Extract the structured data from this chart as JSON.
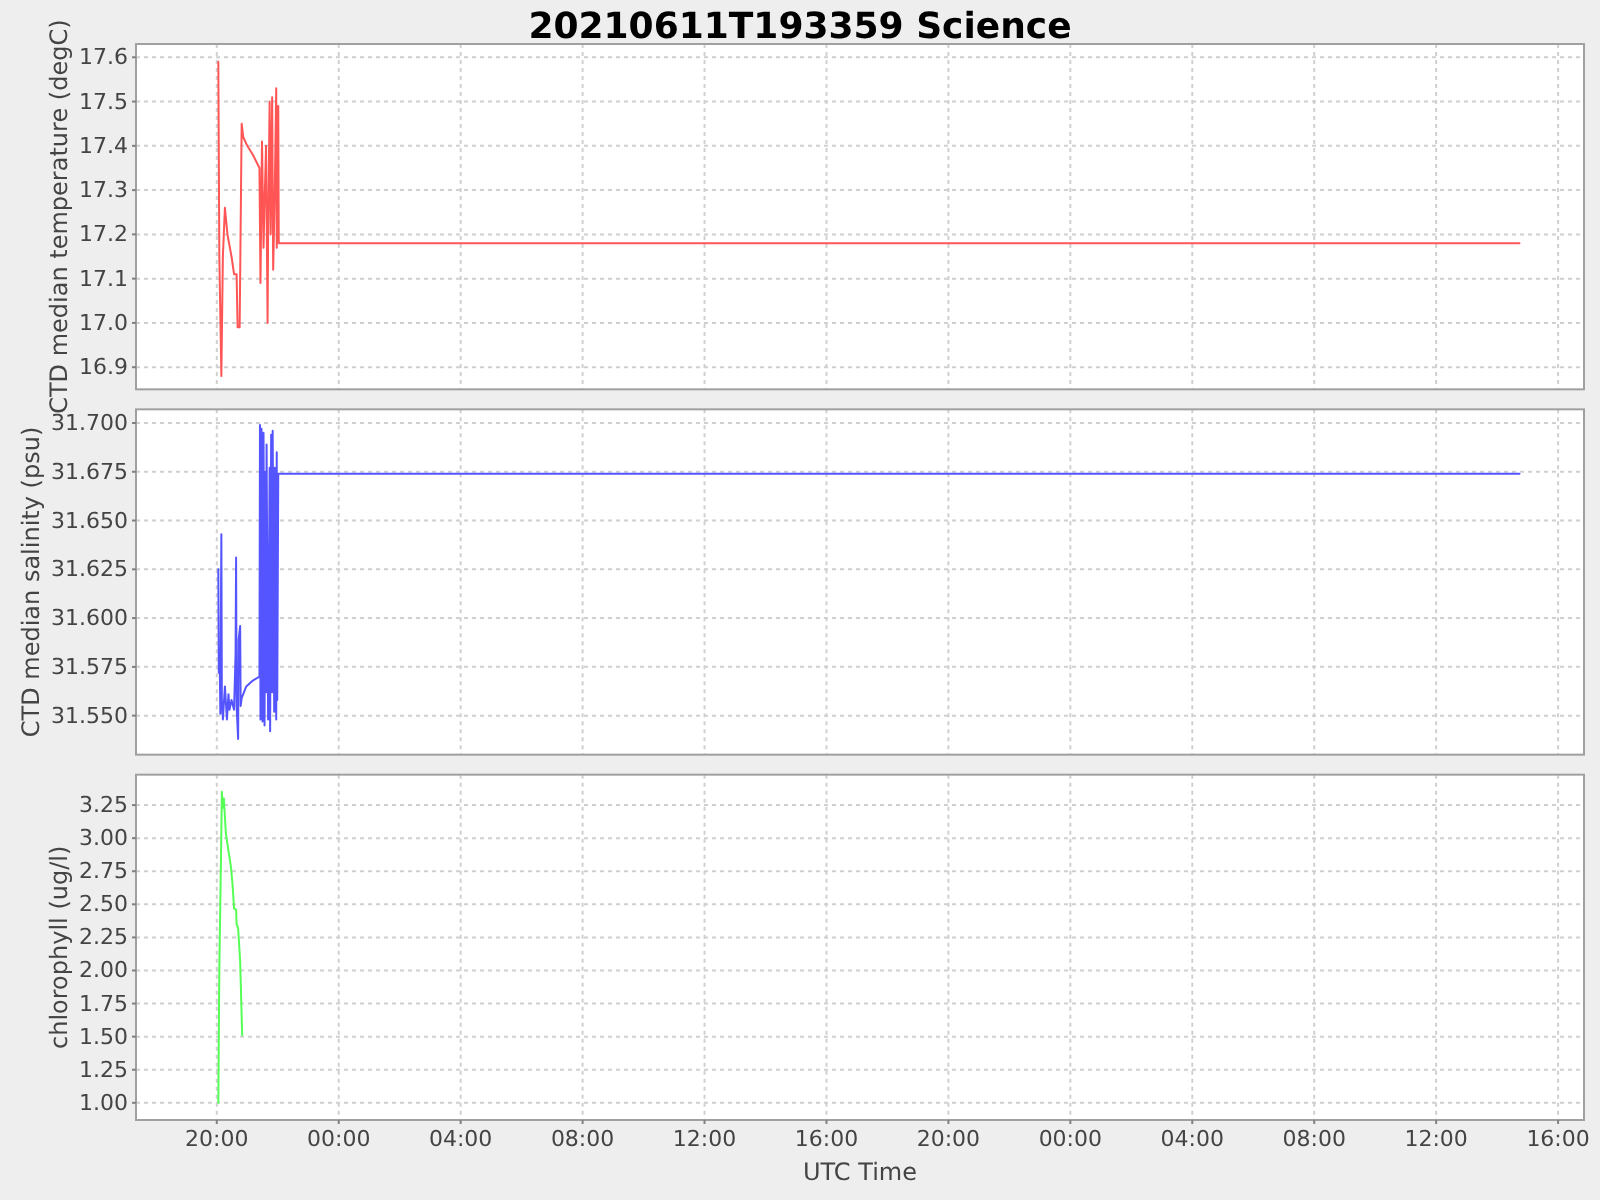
{
  "chart_data": [
    {
      "type": "line",
      "title": "20210611T193359 Science",
      "ylabel": "CTD median temperature (degC)",
      "x": [
        "2021-06-11T20:03",
        "2021-06-11T20:05",
        "2021-06-11T20:09",
        "2021-06-11T20:12",
        "2021-06-11T20:16",
        "2021-06-11T20:21",
        "2021-06-11T20:29",
        "2021-06-11T20:34",
        "2021-06-11T20:39",
        "2021-06-11T20:41",
        "2021-06-11T20:45",
        "2021-06-11T20:49",
        "2021-06-11T20:52",
        "2021-06-11T21:00",
        "2021-06-11T21:11",
        "2021-06-11T21:24",
        "2021-06-11T21:26",
        "2021-06-11T21:29",
        "2021-06-11T21:32",
        "2021-06-11T21:34",
        "2021-06-11T21:37",
        "2021-06-11T21:40",
        "2021-06-11T21:41",
        "2021-06-11T21:44",
        "2021-06-11T21:46",
        "2021-06-11T21:49",
        "2021-06-11T21:51",
        "2021-06-11T21:54",
        "2021-06-11T21:57",
        "2021-06-11T21:58",
        "2021-06-11T22:01",
        "2021-06-11T22:02",
        "2021-06-13T14:44"
      ],
      "series": [
        {
          "color": "#ff5555",
          "values": [
            17.59,
            17.15,
            16.88,
            17.15,
            17.26,
            17.2,
            17.15,
            17.11,
            17.11,
            16.99,
            16.99,
            17.45,
            17.42,
            17.4,
            17.38,
            17.35,
            17.09,
            17.41,
            17.17,
            17.27,
            17.4,
            17.0,
            17.2,
            17.5,
            17.2,
            17.51,
            17.12,
            17.29,
            17.53,
            17.17,
            17.49,
            17.18,
            17.18
          ]
        }
      ],
      "xlim": [
        "2021-06-11T17:21",
        "2021-06-13T16:51"
      ],
      "xticks": [
        {
          "value": "2021-06-11T20:00",
          "label": null
        },
        {
          "value": "2021-06-12T00:00",
          "label": null
        },
        {
          "value": "2021-06-12T04:00",
          "label": null
        },
        {
          "value": "2021-06-12T08:00",
          "label": null
        },
        {
          "value": "2021-06-12T12:00",
          "label": null
        },
        {
          "value": "2021-06-12T16:00",
          "label": null
        },
        {
          "value": "2021-06-12T20:00",
          "label": null
        },
        {
          "value": "2021-06-13T00:00",
          "label": null
        },
        {
          "value": "2021-06-13T04:00",
          "label": null
        },
        {
          "value": "2021-06-13T08:00",
          "label": null
        },
        {
          "value": "2021-06-13T12:00",
          "label": null
        },
        {
          "value": "2021-06-13T16:00",
          "label": null
        }
      ],
      "ylim": [
        16.85,
        17.63
      ],
      "yticks": [
        16.9,
        {
          "value": 17,
          "label": "17.0"
        },
        17.1,
        17.2,
        17.3,
        17.4,
        17.5,
        17.6
      ],
      "grid": true,
      "tick_labels": "y"
    },
    {
      "type": "line",
      "ylabel": "CTD median salinity (psu)",
      "x": [
        "2021-06-11T20:03",
        "2021-06-11T20:04",
        "2021-06-11T20:06",
        "2021-06-11T20:07",
        "2021-06-11T20:09",
        "2021-06-11T20:10",
        "2021-06-11T20:12",
        "2021-06-11T20:16",
        "2021-06-11T20:20",
        "2021-06-11T20:23",
        "2021-06-11T20:25",
        "2021-06-11T20:29",
        "2021-06-11T20:34",
        "2021-06-11T20:37",
        "2021-06-11T20:38",
        "2021-06-11T20:39",
        "2021-06-11T20:42",
        "2021-06-11T20:43",
        "2021-06-11T20:46",
        "2021-06-11T20:47",
        "2021-06-11T20:49",
        "2021-06-11T20:58",
        "2021-06-11T21:11",
        "2021-06-11T21:24",
        "2021-06-11T21:25",
        "2021-06-11T21:26",
        "2021-06-11T21:28",
        "2021-06-11T21:30",
        "2021-06-11T21:32",
        "2021-06-11T21:34",
        "2021-06-11T21:36",
        "2021-06-11T21:37",
        "2021-06-11T21:38",
        "2021-06-11T21:41",
        "2021-06-11T21:44",
        "2021-06-11T21:45",
        "2021-06-11T21:47",
        "2021-06-11T21:49",
        "2021-06-11T21:50",
        "2021-06-11T21:53",
        "2021-06-11T21:54",
        "2021-06-11T21:57",
        "2021-06-11T21:58",
        "2021-06-11T21:59",
        "2021-06-11T22:01",
        "2021-06-13T14:44"
      ],
      "series": [
        {
          "color": "#5555ff",
          "values": [
            31.625,
            31.572,
            31.572,
            31.551,
            31.643,
            31.558,
            31.548,
            31.565,
            31.548,
            31.561,
            31.553,
            31.558,
            31.553,
            31.582,
            31.631,
            31.555,
            31.538,
            31.589,
            31.596,
            31.555,
            31.559,
            31.565,
            31.568,
            31.57,
            31.699,
            31.548,
            31.697,
            31.547,
            31.695,
            31.545,
            31.675,
            31.562,
            31.689,
            31.548,
            31.677,
            31.542,
            31.694,
            31.562,
            31.696,
            31.552,
            31.677,
            31.548,
            31.685,
            31.558,
            31.674,
            31.674
          ]
        }
      ],
      "xlim": [
        "2021-06-11T17:21",
        "2021-06-13T16:51"
      ],
      "xticks": [
        {
          "value": "2021-06-11T20:00",
          "label": null
        },
        {
          "value": "2021-06-12T00:00",
          "label": null
        },
        {
          "value": "2021-06-12T04:00",
          "label": null
        },
        {
          "value": "2021-06-12T08:00",
          "label": null
        },
        {
          "value": "2021-06-12T12:00",
          "label": null
        },
        {
          "value": "2021-06-12T16:00",
          "label": null
        },
        {
          "value": "2021-06-12T20:00",
          "label": null
        },
        {
          "value": "2021-06-13T00:00",
          "label": null
        },
        {
          "value": "2021-06-13T04:00",
          "label": null
        },
        {
          "value": "2021-06-13T08:00",
          "label": null
        },
        {
          "value": "2021-06-13T12:00",
          "label": null
        },
        {
          "value": "2021-06-13T16:00",
          "label": null
        }
      ],
      "ylim": [
        31.53,
        31.707
      ],
      "yticks": [
        {
          "value": 31.55,
          "label": "31.550"
        },
        31.575,
        {
          "value": 31.6,
          "label": "31.600"
        },
        31.625,
        {
          "value": 31.65,
          "label": "31.650"
        },
        31.675,
        {
          "value": 31.7,
          "label": "31.700"
        }
      ],
      "grid": true,
      "tick_labels": "y"
    },
    {
      "type": "line",
      "xlabel": "UTC Time",
      "ylabel": "chlorophyll (ug/l)",
      "x": [
        "2021-06-11T20:03",
        "2021-06-11T20:05",
        "2021-06-11T20:08",
        "2021-06-11T20:10",
        "2021-06-11T20:12",
        "2021-06-11T20:14",
        "2021-06-11T20:16",
        "2021-06-11T20:18",
        "2021-06-11T20:24",
        "2021-06-11T20:28",
        "2021-06-11T20:31",
        "2021-06-11T20:34",
        "2021-06-11T20:38",
        "2021-06-11T20:39",
        "2021-06-11T20:42",
        "2021-06-11T20:46",
        "2021-06-11T20:50"
      ],
      "series": [
        {
          "color": "#55ff55",
          "values": [
            1.0,
            2.02,
            2.78,
            3.35,
            3.23,
            3.3,
            3.16,
            3.03,
            2.88,
            2.78,
            2.65,
            2.47,
            2.46,
            2.35,
            2.32,
            2.07,
            1.51
          ]
        }
      ],
      "xlim": [
        "2021-06-11T17:21",
        "2021-06-13T16:51"
      ],
      "xticks": [
        {
          "value": "2021-06-11T20:00",
          "label": "20:00"
        },
        {
          "value": "2021-06-12T00:00",
          "label": "00:00"
        },
        {
          "value": "2021-06-12T04:00",
          "label": "04:00"
        },
        {
          "value": "2021-06-12T08:00",
          "label": "08:00"
        },
        {
          "value": "2021-06-12T12:00",
          "label": "12:00"
        },
        {
          "value": "2021-06-12T16:00",
          "label": "16:00"
        },
        {
          "value": "2021-06-12T20:00",
          "label": "20:00"
        },
        {
          "value": "2021-06-13T00:00",
          "label": "00:00"
        },
        {
          "value": "2021-06-13T04:00",
          "label": "04:00"
        },
        {
          "value": "2021-06-13T08:00",
          "label": "08:00"
        },
        {
          "value": "2021-06-13T12:00",
          "label": "12:00"
        },
        {
          "value": "2021-06-13T16:00",
          "label": "16:00"
        }
      ],
      "ylim": [
        0.87,
        3.48
      ],
      "yticks": [
        {
          "value": 1,
          "label": "1.00"
        },
        1.25,
        {
          "value": 1.5,
          "label": "1.50"
        },
        1.75,
        {
          "value": 2,
          "label": "2.00"
        },
        2.25,
        {
          "value": 2.5,
          "label": "2.50"
        },
        2.75,
        {
          "value": 3,
          "label": "3.00"
        },
        3.25
      ],
      "grid": true
    }
  ]
}
